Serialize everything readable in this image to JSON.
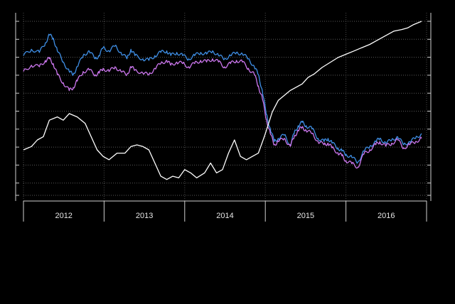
{
  "chart_data": {
    "type": "line",
    "title": "",
    "xlabel": "",
    "ylabel": "",
    "x_categories": [
      "2012",
      "2013",
      "2014",
      "2015",
      "2016"
    ],
    "grid": true,
    "legend": "none",
    "y_tick_count": 11,
    "series": [
      {
        "color": "#3f8fe6",
        "axis": "right",
        "t": [
          0,
          0.02,
          0.04,
          0.055,
          0.065,
          0.075,
          0.085,
          0.1,
          0.115,
          0.125,
          0.135,
          0.15,
          0.165,
          0.18,
          0.19,
          0.2,
          0.215,
          0.23,
          0.245,
          0.26,
          0.27,
          0.28,
          0.3,
          0.315,
          0.33,
          0.345,
          0.36,
          0.37,
          0.385,
          0.4,
          0.415,
          0.43,
          0.445,
          0.46,
          0.475,
          0.49,
          0.505,
          0.52,
          0.535,
          0.55,
          0.565,
          0.58,
          0.59,
          0.6,
          0.61,
          0.62,
          0.63,
          0.64,
          0.655,
          0.67,
          0.68,
          0.69,
          0.7,
          0.71,
          0.725,
          0.74,
          0.755,
          0.765,
          0.775,
          0.79,
          0.8,
          0.81,
          0.825,
          0.84,
          0.855,
          0.87,
          0.885,
          0.895,
          0.91,
          0.925,
          0.94,
          0.955,
          0.97,
          0.985,
          1.0
        ],
        "y": [
          0.82,
          0.86,
          0.84,
          0.9,
          0.95,
          0.93,
          0.85,
          0.78,
          0.72,
          0.7,
          0.75,
          0.82,
          0.85,
          0.8,
          0.82,
          0.87,
          0.85,
          0.88,
          0.84,
          0.8,
          0.86,
          0.82,
          0.8,
          0.79,
          0.82,
          0.84,
          0.85,
          0.82,
          0.84,
          0.82,
          0.8,
          0.82,
          0.84,
          0.83,
          0.85,
          0.82,
          0.8,
          0.82,
          0.84,
          0.83,
          0.8,
          0.75,
          0.7,
          0.6,
          0.45,
          0.36,
          0.28,
          0.3,
          0.32,
          0.26,
          0.33,
          0.38,
          0.4,
          0.38,
          0.36,
          0.3,
          0.28,
          0.3,
          0.27,
          0.24,
          0.22,
          0.2,
          0.18,
          0.15,
          0.22,
          0.25,
          0.28,
          0.3,
          0.27,
          0.29,
          0.31,
          0.26,
          0.28,
          0.3,
          0.33
        ]
      },
      {
        "color": "#cc77ee",
        "axis": "right",
        "t": [
          0,
          0.02,
          0.04,
          0.055,
          0.065,
          0.075,
          0.085,
          0.1,
          0.115,
          0.125,
          0.135,
          0.15,
          0.165,
          0.18,
          0.19,
          0.2,
          0.215,
          0.23,
          0.245,
          0.26,
          0.27,
          0.28,
          0.3,
          0.315,
          0.33,
          0.345,
          0.36,
          0.37,
          0.385,
          0.4,
          0.415,
          0.43,
          0.445,
          0.46,
          0.475,
          0.49,
          0.505,
          0.52,
          0.535,
          0.55,
          0.565,
          0.58,
          0.59,
          0.6,
          0.61,
          0.62,
          0.63,
          0.64,
          0.655,
          0.67,
          0.68,
          0.69,
          0.7,
          0.71,
          0.725,
          0.74,
          0.755,
          0.765,
          0.775,
          0.79,
          0.8,
          0.81,
          0.825,
          0.84,
          0.855,
          0.87,
          0.885,
          0.895,
          0.91,
          0.925,
          0.94,
          0.955,
          0.97,
          0.985,
          1.0
        ],
        "y": [
          0.72,
          0.76,
          0.75,
          0.79,
          0.8,
          0.77,
          0.7,
          0.65,
          0.6,
          0.62,
          0.66,
          0.72,
          0.73,
          0.7,
          0.71,
          0.74,
          0.72,
          0.75,
          0.72,
          0.7,
          0.75,
          0.73,
          0.71,
          0.7,
          0.74,
          0.77,
          0.79,
          0.76,
          0.78,
          0.77,
          0.75,
          0.77,
          0.79,
          0.78,
          0.8,
          0.78,
          0.75,
          0.77,
          0.79,
          0.78,
          0.74,
          0.7,
          0.63,
          0.55,
          0.42,
          0.33,
          0.26,
          0.28,
          0.3,
          0.25,
          0.31,
          0.35,
          0.37,
          0.35,
          0.33,
          0.28,
          0.26,
          0.27,
          0.24,
          0.21,
          0.19,
          0.16,
          0.14,
          0.12,
          0.2,
          0.23,
          0.26,
          0.28,
          0.25,
          0.27,
          0.29,
          0.24,
          0.26,
          0.28,
          0.3
        ]
      },
      {
        "color": "#ffffff",
        "axis": "left",
        "t": [
          0,
          0.02,
          0.035,
          0.05,
          0.065,
          0.085,
          0.1,
          0.115,
          0.135,
          0.155,
          0.17,
          0.185,
          0.2,
          0.215,
          0.235,
          0.255,
          0.27,
          0.285,
          0.3,
          0.315,
          0.33,
          0.345,
          0.36,
          0.375,
          0.39,
          0.405,
          0.42,
          0.435,
          0.455,
          0.47,
          0.485,
          0.5,
          0.515,
          0.53,
          0.545,
          0.56,
          0.575,
          0.59,
          0.605,
          0.625,
          0.64,
          0.655,
          0.67,
          0.685,
          0.7,
          0.715,
          0.73,
          0.75,
          0.77,
          0.79,
          0.81,
          0.83,
          0.85,
          0.87,
          0.885,
          0.9,
          0.915,
          0.93,
          0.95,
          0.965,
          0.98,
          1.0
        ],
        "y": [
          0.22,
          0.24,
          0.28,
          0.3,
          0.4,
          0.42,
          0.4,
          0.44,
          0.42,
          0.38,
          0.3,
          0.22,
          0.18,
          0.16,
          0.2,
          0.2,
          0.24,
          0.25,
          0.24,
          0.22,
          0.14,
          0.06,
          0.04,
          0.06,
          0.05,
          0.1,
          0.08,
          0.05,
          0.08,
          0.14,
          0.08,
          0.1,
          0.2,
          0.28,
          0.18,
          0.16,
          0.18,
          0.2,
          0.3,
          0.45,
          0.52,
          0.55,
          0.58,
          0.6,
          0.62,
          0.66,
          0.68,
          0.72,
          0.75,
          0.78,
          0.8,
          0.82,
          0.84,
          0.86,
          0.88,
          0.9,
          0.92,
          0.94,
          0.95,
          0.96,
          0.98,
          1.0
        ]
      }
    ]
  }
}
